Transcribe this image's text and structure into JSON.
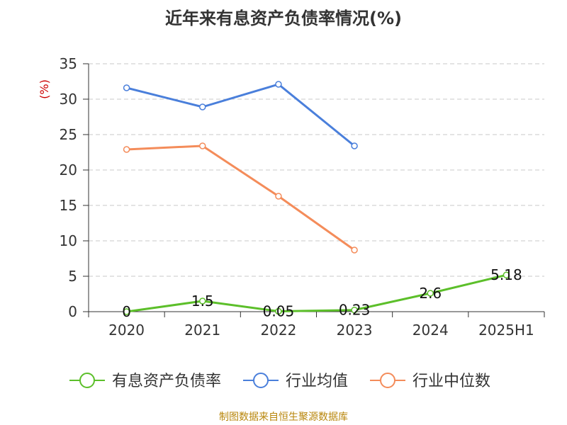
{
  "chart_data": {
    "type": "line",
    "title": "近年来有息资产负债率情况(%)",
    "ylabel": "(%)",
    "xlabel": "",
    "categories": [
      "2020",
      "2021",
      "2022",
      "2023",
      "2024",
      "2025H1"
    ],
    "ylim": [
      0,
      35
    ],
    "yticks": [
      0,
      5,
      10,
      15,
      20,
      25,
      30,
      35
    ],
    "grid": true,
    "legend_position": "bottom",
    "series": [
      {
        "name": "有息资产负债率",
        "color": "#5cbf2a",
        "values": [
          0,
          1.5,
          0.05,
          0.23,
          2.6,
          5.18
        ],
        "labels": [
          "0",
          "1.5",
          "0.05",
          "0.23",
          "2.6",
          "5.18"
        ]
      },
      {
        "name": "行业均值",
        "color": "#4a7fdb",
        "values": [
          31.6,
          28.9,
          32.1,
          23.4,
          null,
          null
        ]
      },
      {
        "name": "行业中位数",
        "color": "#f48c5a",
        "values": [
          22.9,
          23.4,
          16.3,
          8.7,
          null,
          null
        ]
      }
    ]
  },
  "source": "制图数据来自恒生聚源数据库"
}
